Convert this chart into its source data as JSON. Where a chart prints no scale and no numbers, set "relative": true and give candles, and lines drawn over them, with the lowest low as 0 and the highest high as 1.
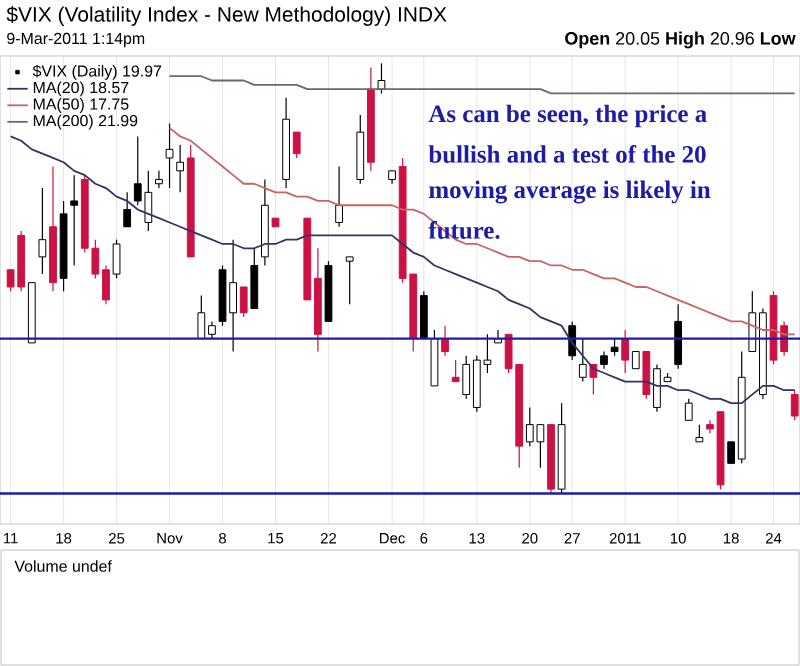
{
  "chart_data": {
    "type": "candlestick",
    "title": "$VIX (Volatility Index - New Methodology) INDX",
    "subtitle": "9-Mar-2011 1:14pm",
    "categories": [
      "11",
      null,
      null,
      null,
      null,
      "18",
      null,
      null,
      null,
      null,
      "25",
      null,
      null,
      null,
      null,
      "Nov",
      null,
      null,
      null,
      null,
      "8",
      null,
      null,
      null,
      null,
      "15",
      null,
      null,
      null,
      null,
      "22",
      null,
      null,
      null,
      null,
      null,
      "Dec",
      null,
      null,
      "6",
      null,
      null,
      null,
      null,
      "13",
      null,
      null,
      null,
      null,
      "20",
      null,
      null,
      null,
      "27",
      null,
      null,
      null,
      null,
      "2011",
      null,
      null,
      null,
      null,
      "10",
      null,
      null,
      null,
      null,
      "18",
      null,
      null,
      null,
      "24",
      null,
      null
    ],
    "relative": true,
    "series": [
      {
        "name": "$VIX (Daily) 19.97",
        "color": "#000000",
        "ohlc": [
          [
            0.52,
            0.52,
            0.47,
            0.48
          ],
          [
            0.6,
            0.61,
            0.47,
            0.48
          ],
          [
            0.35,
            0.49,
            0.35,
            0.49
          ],
          [
            0.55,
            0.71,
            0.51,
            0.59
          ],
          [
            0.62,
            0.76,
            0.47,
            0.49
          ],
          [
            0.65,
            0.68,
            0.47,
            0.5
          ],
          [
            0.68,
            0.74,
            0.53,
            0.67
          ],
          [
            0.73,
            0.74,
            0.56,
            0.57
          ],
          [
            0.57,
            0.59,
            0.5,
            0.51
          ],
          [
            0.52,
            0.53,
            0.44,
            0.45
          ],
          [
            0.51,
            0.59,
            0.5,
            0.58
          ],
          [
            0.66,
            0.7,
            0.62,
            0.62
          ],
          [
            0.72,
            0.83,
            0.67,
            0.68
          ],
          [
            0.63,
            0.75,
            0.61,
            0.7
          ],
          [
            0.72,
            0.75,
            0.71,
            0.73
          ],
          [
            0.78,
            0.86,
            0.71,
            0.8
          ],
          [
            0.75,
            0.81,
            0.7,
            0.77
          ],
          [
            0.78,
            0.81,
            0.55,
            0.55
          ],
          [
            0.36,
            0.46,
            0.36,
            0.42
          ],
          [
            0.37,
            0.4,
            0.36,
            0.39
          ],
          [
            0.52,
            0.53,
            0.39,
            0.4
          ],
          [
            0.42,
            0.59,
            0.33,
            0.49
          ],
          [
            0.48,
            0.48,
            0.41,
            0.42
          ],
          [
            0.53,
            0.57,
            0.43,
            0.43
          ],
          [
            0.55,
            0.73,
            0.53,
            0.67
          ],
          [
            0.64,
            0.64,
            0.62,
            0.62
          ],
          [
            0.73,
            0.92,
            0.71,
            0.87
          ],
          [
            0.84,
            0.84,
            0.78,
            0.79
          ],
          [
            0.64,
            0.64,
            0.45,
            0.45
          ],
          [
            0.5,
            0.57,
            0.33,
            0.37
          ],
          [
            0.53,
            0.54,
            0.4,
            0.4
          ],
          [
            0.63,
            0.76,
            0.62,
            0.67
          ],
          [
            0.54,
            0.55,
            0.44,
            0.55
          ],
          [
            0.73,
            0.88,
            0.72,
            0.84
          ],
          [
            0.94,
            0.99,
            0.75,
            0.77
          ],
          [
            0.94,
            1.0,
            0.93,
            0.96
          ],
          [
            0.73,
            0.75,
            0.72,
            0.75
          ],
          [
            0.76,
            0.78,
            0.49,
            0.5
          ],
          [
            0.51,
            0.51,
            0.33,
            0.36
          ],
          [
            0.46,
            0.47,
            0.36,
            0.36
          ],
          [
            0.25,
            0.38,
            0.25,
            0.36
          ],
          [
            0.36,
            0.39,
            0.32,
            0.33
          ],
          [
            0.27,
            0.31,
            0.26,
            0.26
          ],
          [
            0.23,
            0.32,
            0.22,
            0.3
          ],
          [
            0.2,
            0.32,
            0.19,
            0.31
          ],
          [
            0.3,
            0.37,
            0.28,
            0.31
          ],
          [
            0.35,
            0.38,
            0.35,
            0.36
          ],
          [
            0.37,
            0.37,
            0.28,
            0.29
          ],
          [
            0.3,
            0.3,
            0.06,
            0.11
          ],
          [
            0.12,
            0.2,
            0.11,
            0.16
          ],
          [
            0.12,
            0.16,
            0.06,
            0.16
          ],
          [
            0.16,
            0.16,
            0.0,
            0.01
          ],
          [
            0.01,
            0.21,
            0.0,
            0.16
          ],
          [
            0.39,
            0.4,
            0.31,
            0.32
          ],
          [
            0.27,
            0.36,
            0.26,
            0.3
          ],
          [
            0.3,
            0.3,
            0.23,
            0.27
          ],
          [
            0.32,
            0.33,
            0.29,
            0.3
          ],
          [
            0.34,
            0.36,
            0.32,
            0.33
          ],
          [
            0.36,
            0.38,
            0.28,
            0.31
          ],
          [
            0.29,
            0.33,
            0.29,
            0.33
          ],
          [
            0.33,
            0.33,
            0.22,
            0.23
          ],
          [
            0.2,
            0.3,
            0.19,
            0.29
          ],
          [
            0.26,
            0.28,
            0.26,
            0.27
          ],
          [
            0.4,
            0.44,
            0.29,
            0.3
          ],
          [
            0.17,
            0.22,
            0.17,
            0.21
          ],
          [
            0.12,
            0.16,
            0.12,
            0.13
          ],
          [
            0.16,
            0.17,
            0.14,
            0.15
          ],
          [
            0.19,
            0.19,
            0.01,
            0.02
          ],
          [
            0.12,
            0.12,
            0.07,
            0.07
          ],
          [
            0.08,
            0.33,
            0.07,
            0.27
          ],
          [
            0.33,
            0.47,
            0.33,
            0.42
          ],
          [
            0.23,
            0.43,
            0.22,
            0.42
          ],
          [
            0.46,
            0.47,
            0.3,
            0.31
          ],
          [
            0.39,
            0.4,
            0.32,
            0.33
          ],
          [
            0.23,
            0.24,
            0.17,
            0.18
          ]
        ],
        "colors": [
          "#cc1144",
          "#cc1144",
          "#000000",
          "#000000",
          "#cc1144",
          "#000000",
          "#000000",
          "#cc1144",
          "#cc1144",
          "#cc1144",
          "#000000",
          "#000000",
          "#000000",
          "#000000",
          "#000000",
          "#000000",
          "#000000",
          "#cc1144",
          "#000000",
          "#000000",
          "#000000",
          "#000000",
          "#cc1144",
          "#000000",
          "#000000",
          "#cc1144",
          "#000000",
          "#cc1144",
          "#cc1144",
          "#cc1144",
          "#000000",
          "#000000",
          "#000000",
          "#000000",
          "#cc1144",
          "#000000",
          "#000000",
          "#cc1144",
          "#cc1144",
          "#000000",
          "#000000",
          "#cc1144",
          "#cc1144",
          "#000000",
          "#000000",
          "#000000",
          "#000000",
          "#cc1144",
          "#cc1144",
          "#000000",
          "#000000",
          "#cc1144",
          "#000000",
          "#000000",
          "#000000",
          "#cc1144",
          "#000000",
          "#000000",
          "#cc1144",
          "#000000",
          "#cc1144",
          "#000000",
          "#000000",
          "#000000",
          "#000000",
          "#000000",
          "#cc1144",
          "#cc1144",
          "#000000",
          "#000000",
          "#000000",
          "#000000",
          "#cc1144",
          "#cc1144",
          "#cc1144"
        ]
      },
      {
        "type": "line",
        "name": "MA(20) 18.57",
        "color": "#333366",
        "values": [
          0.83,
          0.82,
          0.8,
          0.79,
          0.78,
          0.77,
          0.75,
          0.74,
          0.72,
          0.71,
          0.69,
          0.68,
          0.66,
          0.65,
          0.64,
          0.63,
          0.62,
          0.61,
          0.6,
          0.59,
          0.58,
          0.58,
          0.57,
          0.57,
          0.58,
          0.58,
          0.59,
          0.59,
          0.6,
          0.6,
          0.6,
          0.6,
          0.6,
          0.6,
          0.6,
          0.6,
          0.6,
          0.58,
          0.56,
          0.55,
          0.53,
          0.52,
          0.51,
          0.5,
          0.49,
          0.48,
          0.47,
          0.45,
          0.44,
          0.43,
          0.41,
          0.4,
          0.39,
          0.35,
          0.32,
          0.29,
          0.28,
          0.27,
          0.26,
          0.26,
          0.26,
          0.25,
          0.25,
          0.24,
          0.24,
          0.23,
          0.22,
          0.22,
          0.21,
          0.21,
          0.23,
          0.25,
          0.25,
          0.24,
          0.24
        ]
      },
      {
        "type": "line",
        "name": "MA(50) 17.75",
        "color": "#c86464",
        "values": [
          null,
          null,
          null,
          null,
          null,
          null,
          null,
          null,
          null,
          null,
          null,
          null,
          null,
          null,
          null,
          0.85,
          0.83,
          0.82,
          0.8,
          0.78,
          0.76,
          0.74,
          0.72,
          0.72,
          0.71,
          0.7,
          0.7,
          0.69,
          0.69,
          0.68,
          0.68,
          0.67,
          0.67,
          0.67,
          0.67,
          0.67,
          0.67,
          0.66,
          0.66,
          0.65,
          0.63,
          0.61,
          0.59,
          0.58,
          0.58,
          0.57,
          0.56,
          0.55,
          0.55,
          0.54,
          0.54,
          0.53,
          0.53,
          0.52,
          0.52,
          0.51,
          0.5,
          0.5,
          0.49,
          0.48,
          0.48,
          0.47,
          0.46,
          0.45,
          0.44,
          0.43,
          0.42,
          0.41,
          0.4,
          0.4,
          0.39,
          0.38,
          0.38,
          0.37,
          0.37
        ]
      },
      {
        "type": "line",
        "name": "MA(200) 21.99",
        "color": "#5f705f",
        "values": [
          null,
          null,
          null,
          null,
          null,
          null,
          null,
          null,
          null,
          null,
          null,
          null,
          null,
          null,
          null,
          0.97,
          0.97,
          0.97,
          0.97,
          0.96,
          0.96,
          0.96,
          0.96,
          0.95,
          0.95,
          0.95,
          0.95,
          0.95,
          0.94,
          0.94,
          0.94,
          0.94,
          0.94,
          0.94,
          0.94,
          0.94,
          0.94,
          0.94,
          0.94,
          0.94,
          0.94,
          0.94,
          0.94,
          0.94,
          0.94,
          0.94,
          0.94,
          0.94,
          0.94,
          0.94,
          0.94,
          0.93,
          0.93,
          0.93,
          0.93,
          0.93,
          0.93,
          0.93,
          0.93,
          0.93,
          0.93,
          0.93,
          0.93,
          0.93,
          0.93,
          0.93,
          0.93,
          0.93,
          0.93,
          0.93,
          0.93,
          0.93,
          0.93,
          0.93,
          0.93
        ]
      }
    ],
    "ref_lines": [
      {
        "axis": "y",
        "value": 0.36,
        "color": "#1c1ca8"
      },
      {
        "axis": "y",
        "value": 0.0,
        "color": "#1c1ca8"
      }
    ],
    "annotations": [
      "**Open** 20.05 **High** 20.96 **Low**",
      "As can be seen, the price a",
      "bullish and a test of the 20",
      "moving average is likely in",
      "future.",
      "Volume undef"
    ],
    "legend": "top left",
    "grid": "x"
  }
}
